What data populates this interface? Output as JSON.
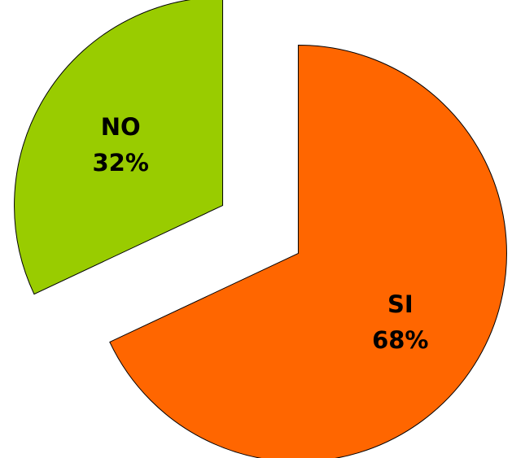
{
  "chart_data": {
    "type": "pie",
    "title": "",
    "slices": [
      {
        "label": "SI",
        "value": 68,
        "value_label": "68%",
        "color": "#FF6600",
        "exploded": true
      },
      {
        "label": "NO",
        "value": 32,
        "value_label": "32%",
        "color": "#99CC00",
        "exploded": true
      }
    ],
    "start_angle_deg": 0,
    "direction": "clockwise",
    "legend": "none"
  }
}
